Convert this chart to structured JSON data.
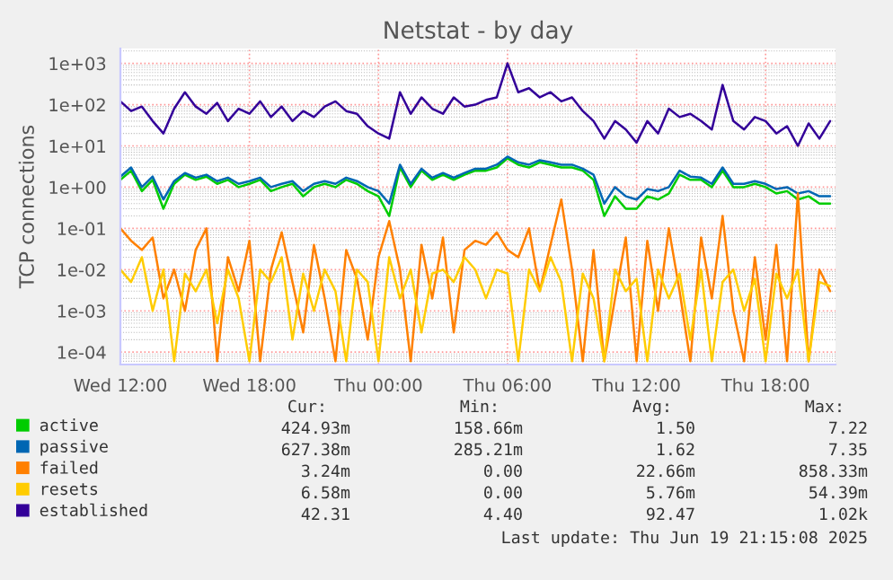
{
  "chart_data": {
    "type": "line",
    "title": "Netstat - by day",
    "ylabel": "TCP connections",
    "x": [
      "2025-06-18T12:00",
      "2025-06-18T12:30",
      "2025-06-18T13:00",
      "2025-06-18T13:30",
      "2025-06-18T14:00",
      "2025-06-18T14:30",
      "2025-06-18T15:00",
      "2025-06-18T15:30",
      "2025-06-18T16:00",
      "2025-06-18T16:30",
      "2025-06-18T17:00",
      "2025-06-18T17:30",
      "2025-06-18T18:00",
      "2025-06-18T18:30",
      "2025-06-18T19:00",
      "2025-06-18T19:30",
      "2025-06-18T20:00",
      "2025-06-18T20:30",
      "2025-06-18T21:00",
      "2025-06-18T21:30",
      "2025-06-18T22:00",
      "2025-06-18T22:30",
      "2025-06-18T23:00",
      "2025-06-18T23:30",
      "2025-06-19T00:00",
      "2025-06-19T00:30",
      "2025-06-19T01:00",
      "2025-06-19T01:30",
      "2025-06-19T02:00",
      "2025-06-19T02:30",
      "2025-06-19T03:00",
      "2025-06-19T03:30",
      "2025-06-19T04:00",
      "2025-06-19T04:30",
      "2025-06-19T05:00",
      "2025-06-19T05:30",
      "2025-06-19T06:00",
      "2025-06-19T06:30",
      "2025-06-19T07:00",
      "2025-06-19T07:30",
      "2025-06-19T08:00",
      "2025-06-19T08:30",
      "2025-06-19T09:00",
      "2025-06-19T09:30",
      "2025-06-19T10:00",
      "2025-06-19T10:30",
      "2025-06-19T11:00",
      "2025-06-19T11:30",
      "2025-06-19T12:00",
      "2025-06-19T12:30",
      "2025-06-19T13:00",
      "2025-06-19T13:30",
      "2025-06-19T14:00",
      "2025-06-19T14:30",
      "2025-06-19T15:00",
      "2025-06-19T15:30",
      "2025-06-19T16:00",
      "2025-06-19T16:30",
      "2025-06-19T17:00",
      "2025-06-19T17:30",
      "2025-06-19T18:00",
      "2025-06-19T18:30",
      "2025-06-19T19:00",
      "2025-06-19T19:30",
      "2025-06-19T20:00",
      "2025-06-19T20:30",
      "2025-06-19T21:00"
    ],
    "series": [
      {
        "name": "active",
        "color": "#00cc00",
        "values": [
          1.5,
          2.5,
          0.8,
          1.5,
          0.3,
          1.2,
          2,
          1.5,
          1.8,
          1.2,
          1.5,
          1,
          1.2,
          1.5,
          0.8,
          1,
          1.2,
          0.6,
          1,
          1.2,
          1,
          1.5,
          1.2,
          0.8,
          0.6,
          0.2,
          3,
          1,
          2.5,
          1.5,
          2,
          1.5,
          2,
          2.5,
          2.5,
          3,
          5,
          3.5,
          3,
          4,
          3.5,
          3,
          3,
          2.5,
          1.5,
          0.2,
          0.6,
          0.3,
          0.3,
          0.6,
          0.5,
          0.7,
          2,
          1.5,
          1.5,
          1,
          2.5,
          1,
          1,
          1.2,
          1,
          0.7,
          0.8,
          0.5,
          0.6,
          0.4,
          0.4
        ]
      },
      {
        "name": "passive",
        "color": "#0066b3",
        "values": [
          1.8,
          3,
          1,
          1.8,
          0.5,
          1.4,
          2.2,
          1.7,
          2,
          1.4,
          1.7,
          1.2,
          1.4,
          1.7,
          1,
          1.2,
          1.4,
          0.8,
          1.2,
          1.4,
          1.2,
          1.7,
          1.4,
          1,
          0.8,
          0.4,
          3.5,
          1.2,
          2.8,
          1.7,
          2.2,
          1.7,
          2.2,
          2.8,
          2.8,
          3.5,
          5.5,
          4,
          3.5,
          4.5,
          4,
          3.5,
          3.5,
          2.8,
          2,
          0.4,
          1,
          0.6,
          0.5,
          0.9,
          0.8,
          1,
          2.5,
          1.8,
          1.7,
          1.2,
          3,
          1.2,
          1.2,
          1.4,
          1.2,
          0.9,
          1,
          0.7,
          0.8,
          0.6,
          0.6
        ]
      },
      {
        "name": "failed",
        "color": "#ff8000",
        "values": [
          0.1,
          0.05,
          0.03,
          0.06,
          0.002,
          0.01,
          0.001,
          0.03,
          0.1,
          6e-05,
          0.02,
          0.003,
          0.05,
          6e-05,
          0.01,
          0.08,
          0.005,
          0.0003,
          0.04,
          0.002,
          6e-05,
          0.03,
          0.006,
          0.0002,
          0.02,
          0.15,
          0.01,
          6e-05,
          0.04,
          0.002,
          0.06,
          0.0003,
          0.03,
          0.05,
          0.04,
          0.08,
          0.03,
          0.02,
          0.1,
          0.003,
          0.04,
          0.5,
          0.01,
          6e-05,
          0.03,
          6e-05,
          0.002,
          0.06,
          6e-05,
          0.05,
          0.001,
          0.1,
          0.003,
          6e-05,
          0.06,
          0.002,
          0.2,
          0.001,
          6e-05,
          0.02,
          0.0002,
          0.04,
          6e-05,
          0.7,
          6e-05,
          0.01,
          0.003
        ]
      },
      {
        "name": "resets",
        "color": "#ffcc00",
        "values": [
          0.01,
          0.005,
          0.02,
          0.001,
          0.01,
          6e-05,
          0.008,
          0.003,
          0.01,
          0.0005,
          0.01,
          0.002,
          6e-05,
          0.01,
          0.005,
          0.02,
          0.0002,
          0.008,
          0.001,
          0.01,
          0.003,
          6e-05,
          0.01,
          0.005,
          6e-05,
          0.02,
          0.002,
          0.01,
          0.0003,
          0.008,
          0.01,
          0.005,
          0.02,
          0.01,
          0.002,
          0.01,
          0.008,
          6e-05,
          0.01,
          0.003,
          0.02,
          0.005,
          6e-05,
          0.008,
          0.002,
          6e-05,
          0.01,
          0.003,
          0.006,
          6e-05,
          0.01,
          0.002,
          0.008,
          0.0002,
          0.01,
          6e-05,
          0.005,
          0.01,
          0.001,
          0.006,
          6e-05,
          0.008,
          0.002,
          0.01,
          6e-05,
          0.005,
          0.004
        ]
      },
      {
        "name": "established",
        "color": "#330099",
        "values": [
          120,
          70,
          90,
          40,
          20,
          80,
          200,
          90,
          60,
          110,
          40,
          80,
          60,
          120,
          50,
          90,
          40,
          70,
          50,
          90,
          120,
          70,
          60,
          30,
          20,
          15,
          200,
          60,
          150,
          80,
          60,
          150,
          90,
          100,
          130,
          150,
          1000,
          200,
          250,
          150,
          200,
          120,
          150,
          70,
          40,
          15,
          40,
          25,
          12,
          40,
          20,
          80,
          50,
          60,
          40,
          25,
          300,
          40,
          25,
          50,
          40,
          20,
          30,
          10,
          35,
          15,
          40
        ]
      }
    ],
    "log": "y",
    "ylim": [
      5e-05,
      2300
    ],
    "yticks": [
      {
        "value": 0.0001,
        "label": "1e-04"
      },
      {
        "value": 0.001,
        "label": "1e-03"
      },
      {
        "value": 0.01,
        "label": "1e-02"
      },
      {
        "value": 0.1,
        "label": "1e-01"
      },
      {
        "value": 1,
        "label": "1e+00"
      },
      {
        "value": 10,
        "label": "1e+01"
      },
      {
        "value": 100,
        "label": "1e+02"
      },
      {
        "value": 1000,
        "label": "1e+03"
      }
    ],
    "xlim": [
      "2025-06-18T12:00",
      "2025-06-19T21:15"
    ],
    "xticks": [
      {
        "value": "2025-06-18T12:00",
        "label": "Wed 12:00"
      },
      {
        "value": "2025-06-18T18:00",
        "label": "Wed 18:00"
      },
      {
        "value": "2025-06-19T00:00",
        "label": "Thu 00:00"
      },
      {
        "value": "2025-06-19T06:00",
        "label": "Thu 06:00"
      },
      {
        "value": "2025-06-19T12:00",
        "label": "Thu 12:00"
      },
      {
        "value": "2025-06-19T18:00",
        "label": "Thu 18:00"
      }
    ],
    "grid": true,
    "legend": "bottom left",
    "annotations": [
      "Cur:",
      "Min:",
      "Avg:",
      "Max:",
      "424.93m",
      "158.66m",
      "1.50",
      "7.22",
      "627.38m",
      "285.21m",
      "1.62",
      "7.35",
      "3.24m",
      "0.00",
      "22.66m",
      "858.33m",
      "6.58m",
      "0.00",
      "5.76m",
      "54.39m",
      "42.31",
      "4.40",
      "92.47",
      "1.02k",
      "Last update: Thu Jun 19 21:15:08 2025"
    ]
  }
}
